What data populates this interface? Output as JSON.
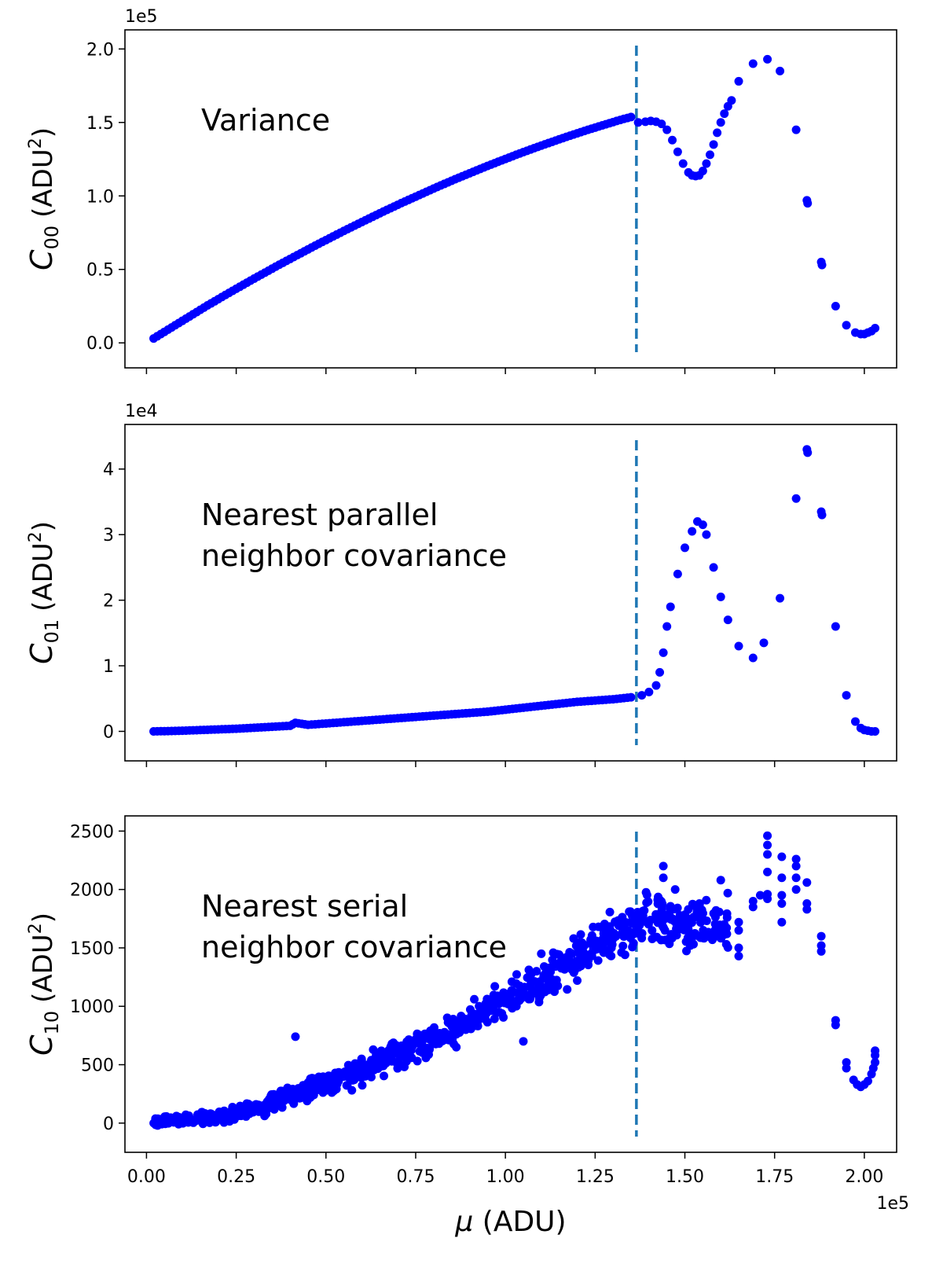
{
  "chart_data": [
    {
      "type": "scatter",
      "panel": "top",
      "annotation": [
        "Variance"
      ],
      "ylabel": {
        "symbol": "C",
        "sub": "00",
        "unit": "(ADU",
        "sup": "2",
        "close": ")"
      },
      "y_multiplier": "1e5",
      "ylim": [
        -0.17,
        2.13
      ],
      "yticks": [
        0.0,
        0.5,
        1.0,
        1.5,
        2.0
      ],
      "ytick_labels": [
        "0.0",
        "0.5",
        "1.0",
        "1.5",
        "2.0"
      ],
      "xlim": [
        -0.06,
        2.09
      ],
      "vline_x": 1.365,
      "series": [
        {
          "name": "C00",
          "color": "#0000ff",
          "points": [
            [
              0.02,
              0.03
            ],
            [
              0.03,
              0.045
            ],
            [
              0.05,
              0.075
            ],
            [
              0.07,
              0.105
            ],
            [
              0.09,
              0.135
            ],
            [
              0.11,
              0.165
            ],
            [
              0.13,
              0.195
            ],
            [
              0.15,
              0.225
            ],
            [
              0.17,
              0.255
            ],
            [
              0.19,
              0.283
            ],
            [
              0.21,
              0.312
            ],
            [
              0.23,
              0.34
            ],
            [
              0.25,
              0.368
            ],
            [
              0.27,
              0.396
            ],
            [
              0.29,
              0.424
            ],
            [
              0.31,
              0.451
            ],
            [
              0.33,
              0.478
            ],
            [
              0.35,
              0.505
            ],
            [
              0.37,
              0.532
            ],
            [
              0.39,
              0.558
            ],
            [
              0.41,
              0.584
            ],
            [
              0.43,
              0.61
            ],
            [
              0.45,
              0.636
            ],
            [
              0.47,
              0.662
            ],
            [
              0.49,
              0.687
            ],
            [
              0.51,
              0.712
            ],
            [
              0.53,
              0.737
            ],
            [
              0.55,
              0.762
            ],
            [
              0.57,
              0.786
            ],
            [
              0.59,
              0.81
            ],
            [
              0.61,
              0.834
            ],
            [
              0.63,
              0.858
            ],
            [
              0.65,
              0.882
            ],
            [
              0.67,
              0.905
            ],
            [
              0.69,
              0.928
            ],
            [
              0.71,
              0.951
            ],
            [
              0.73,
              0.973
            ],
            [
              0.75,
              0.995
            ],
            [
              0.77,
              1.017
            ],
            [
              0.79,
              1.039
            ],
            [
              0.81,
              1.061
            ],
            [
              0.83,
              1.082
            ],
            [
              0.85,
              1.103
            ],
            [
              0.87,
              1.124
            ],
            [
              0.89,
              1.144
            ],
            [
              0.91,
              1.164
            ],
            [
              0.93,
              1.184
            ],
            [
              0.95,
              1.204
            ],
            [
              0.97,
              1.223
            ],
            [
              0.99,
              1.242
            ],
            [
              1.01,
              1.261
            ],
            [
              1.03,
              1.28
            ],
            [
              1.05,
              1.298
            ],
            [
              1.07,
              1.316
            ],
            [
              1.09,
              1.334
            ],
            [
              1.11,
              1.351
            ],
            [
              1.13,
              1.368
            ],
            [
              1.15,
              1.385
            ],
            [
              1.17,
              1.402
            ],
            [
              1.19,
              1.418
            ],
            [
              1.21,
              1.434
            ],
            [
              1.23,
              1.45
            ],
            [
              1.25,
              1.465
            ],
            [
              1.27,
              1.48
            ],
            [
              1.29,
              1.495
            ],
            [
              1.31,
              1.51
            ],
            [
              1.33,
              1.524
            ],
            [
              1.35,
              1.537
            ],
            [
              1.37,
              1.5
            ],
            [
              1.39,
              1.505
            ],
            [
              1.405,
              1.51
            ],
            [
              1.42,
              1.505
            ],
            [
              1.435,
              1.49
            ],
            [
              1.45,
              1.45
            ],
            [
              1.465,
              1.38
            ],
            [
              1.48,
              1.3
            ],
            [
              1.495,
              1.22
            ],
            [
              1.51,
              1.16
            ],
            [
              1.52,
              1.14
            ],
            [
              1.53,
              1.135
            ],
            [
              1.54,
              1.14
            ],
            [
              1.55,
              1.17
            ],
            [
              1.56,
              1.22
            ],
            [
              1.57,
              1.28
            ],
            [
              1.58,
              1.35
            ],
            [
              1.59,
              1.43
            ],
            [
              1.6,
              1.5
            ],
            [
              1.61,
              1.56
            ],
            [
              1.62,
              1.61
            ],
            [
              1.63,
              1.65
            ],
            [
              1.65,
              1.78
            ],
            [
              1.69,
              1.9
            ],
            [
              1.73,
              1.93
            ],
            [
              1.765,
              1.85
            ],
            [
              1.81,
              1.45
            ],
            [
              1.84,
              0.97
            ],
            [
              1.842,
              0.95
            ],
            [
              1.88,
              0.55
            ],
            [
              1.882,
              0.53
            ],
            [
              1.92,
              0.25
            ],
            [
              1.95,
              0.12
            ],
            [
              1.975,
              0.07
            ],
            [
              1.99,
              0.06
            ],
            [
              2.0,
              0.06
            ],
            [
              2.01,
              0.07
            ],
            [
              2.02,
              0.08
            ],
            [
              2.03,
              0.1
            ]
          ]
        }
      ]
    },
    {
      "type": "scatter",
      "panel": "middle",
      "annotation": [
        "Nearest parallel",
        "neighbor covariance"
      ],
      "ylabel": {
        "symbol": "C",
        "sub": "01",
        "unit": "(ADU",
        "sup": "2",
        "close": ")"
      },
      "y_multiplier": "1e4",
      "ylim": [
        -0.45,
        4.68
      ],
      "yticks": [
        0,
        1,
        2,
        3,
        4
      ],
      "ytick_labels": [
        "0",
        "1",
        "2",
        "3",
        "4"
      ],
      "xlim": [
        -0.06,
        2.09
      ],
      "vline_x": 1.365,
      "series": [
        {
          "name": "C01",
          "color": "#0000ff",
          "points": [
            [
              0.02,
              0.0
            ],
            [
              0.05,
              0.003
            ],
            [
              0.1,
              0.01
            ],
            [
              0.15,
              0.02
            ],
            [
              0.2,
              0.03
            ],
            [
              0.25,
              0.04
            ],
            [
              0.3,
              0.055
            ],
            [
              0.35,
              0.07
            ],
            [
              0.4,
              0.085
            ],
            [
              0.415,
              0.13
            ],
            [
              0.45,
              0.1
            ],
            [
              0.5,
              0.12
            ],
            [
              0.55,
              0.14
            ],
            [
              0.6,
              0.16
            ],
            [
              0.65,
              0.18
            ],
            [
              0.7,
              0.2
            ],
            [
              0.75,
              0.22
            ],
            [
              0.8,
              0.24
            ],
            [
              0.85,
              0.26
            ],
            [
              0.9,
              0.28
            ],
            [
              0.95,
              0.3
            ],
            [
              1.0,
              0.33
            ],
            [
              1.05,
              0.36
            ],
            [
              1.1,
              0.39
            ],
            [
              1.15,
              0.42
            ],
            [
              1.2,
              0.45
            ],
            [
              1.25,
              0.47
            ],
            [
              1.3,
              0.49
            ],
            [
              1.35,
              0.52
            ],
            [
              1.38,
              0.55
            ],
            [
              1.4,
              0.6
            ],
            [
              1.42,
              0.7
            ],
            [
              1.43,
              0.9
            ],
            [
              1.44,
              1.2
            ],
            [
              1.45,
              1.6
            ],
            [
              1.46,
              1.9
            ],
            [
              1.48,
              2.4
            ],
            [
              1.5,
              2.8
            ],
            [
              1.52,
              3.05
            ],
            [
              1.535,
              3.2
            ],
            [
              1.55,
              3.15
            ],
            [
              1.56,
              3.0
            ],
            [
              1.58,
              2.5
            ],
            [
              1.6,
              2.05
            ],
            [
              1.62,
              1.7
            ],
            [
              1.65,
              1.3
            ],
            [
              1.69,
              1.12
            ],
            [
              1.72,
              1.35
            ],
            [
              1.765,
              2.03
            ],
            [
              1.81,
              3.55
            ],
            [
              1.84,
              4.3
            ],
            [
              1.842,
              4.25
            ],
            [
              1.88,
              3.35
            ],
            [
              1.882,
              3.3
            ],
            [
              1.92,
              1.6
            ],
            [
              1.95,
              0.55
            ],
            [
              1.975,
              0.15
            ],
            [
              1.99,
              0.05
            ],
            [
              2.0,
              0.02
            ],
            [
              2.01,
              0.01
            ],
            [
              2.02,
              0.0
            ],
            [
              2.03,
              0.0
            ]
          ]
        }
      ]
    },
    {
      "type": "scatter",
      "panel": "bottom",
      "annotation": [
        "Nearest serial",
        "neighbor covariance"
      ],
      "ylabel": {
        "symbol": "C",
        "sub": "10",
        "unit": "(ADU",
        "sup": "2",
        "close": ")"
      },
      "y_multiplier": "",
      "ylim": [
        -250,
        2630
      ],
      "yticks": [
        0,
        500,
        1000,
        1500,
        2000,
        2500
      ],
      "ytick_labels": [
        "0",
        "500",
        "1000",
        "1500",
        "2000",
        "2500"
      ],
      "xlim": [
        -0.06,
        2.09
      ],
      "xticks": [
        0.0,
        0.25,
        0.5,
        0.75,
        1.0,
        1.25,
        1.5,
        1.75,
        2.0
      ],
      "xtick_labels": [
        "0.00",
        "0.25",
        "0.50",
        "0.75",
        "1.00",
        "1.25",
        "1.50",
        "1.75",
        "2.00"
      ],
      "x_multiplier": "1e5",
      "xlabel": {
        "symbol": "μ",
        "rest": " (ADU)"
      },
      "vline_x": 1.365,
      "trend": [
        [
          0.0,
          0
        ],
        [
          0.25,
          70
        ],
        [
          0.5,
          330
        ],
        [
          0.75,
          650
        ],
        [
          1.0,
          1050
        ],
        [
          1.25,
          1500
        ],
        [
          1.365,
          1700
        ],
        [
          1.4,
          1800
        ],
        [
          1.5,
          1720
        ],
        [
          1.6,
          1680
        ],
        [
          1.7,
          1700
        ]
      ],
      "series": [
        {
          "name": "C10",
          "color": "#0000ff",
          "points": [
            [
              0.415,
              740
            ],
            [
              1.44,
              2200
            ],
            [
              1.44,
              2100
            ],
            [
              1.6,
              2080
            ],
            [
              1.1,
              1450
            ],
            [
              1.17,
              1420
            ],
            [
              1.19,
              1580
            ],
            [
              1.05,
              700
            ],
            [
              0.5,
              280
            ],
            [
              1.73,
              2460
            ],
            [
              1.73,
              2380
            ],
            [
              1.73,
              2300
            ],
            [
              1.73,
              2150
            ],
            [
              1.73,
              1960
            ],
            [
              1.73,
              1920
            ],
            [
              1.71,
              1950
            ],
            [
              1.69,
              1900
            ],
            [
              1.69,
              1850
            ],
            [
              1.77,
              2280
            ],
            [
              1.77,
              2100
            ],
            [
              1.77,
              1950
            ],
            [
              1.77,
              1880
            ],
            [
              1.77,
              1720
            ],
            [
              1.81,
              2260
            ],
            [
              1.81,
              2200
            ],
            [
              1.81,
              2100
            ],
            [
              1.81,
              2000
            ],
            [
              1.84,
              2060
            ],
            [
              1.84,
              1880
            ],
            [
              1.84,
              1830
            ],
            [
              1.88,
              1600
            ],
            [
              1.88,
              1520
            ],
            [
              1.88,
              1470
            ],
            [
              1.92,
              880
            ],
            [
              1.92,
              840
            ],
            [
              1.95,
              520
            ],
            [
              1.95,
              470
            ],
            [
              1.97,
              370
            ],
            [
              1.98,
              330
            ],
            [
              1.99,
              310
            ],
            [
              2.0,
              330
            ],
            [
              2.01,
              360
            ],
            [
              2.02,
              420
            ],
            [
              2.025,
              470
            ],
            [
              2.03,
              520
            ],
            [
              2.03,
              580
            ],
            [
              2.03,
              620
            ],
            [
              1.65,
              1500
            ],
            [
              1.65,
              1650
            ],
            [
              1.65,
              1720
            ],
            [
              1.65,
              1430
            ]
          ]
        }
      ]
    }
  ]
}
